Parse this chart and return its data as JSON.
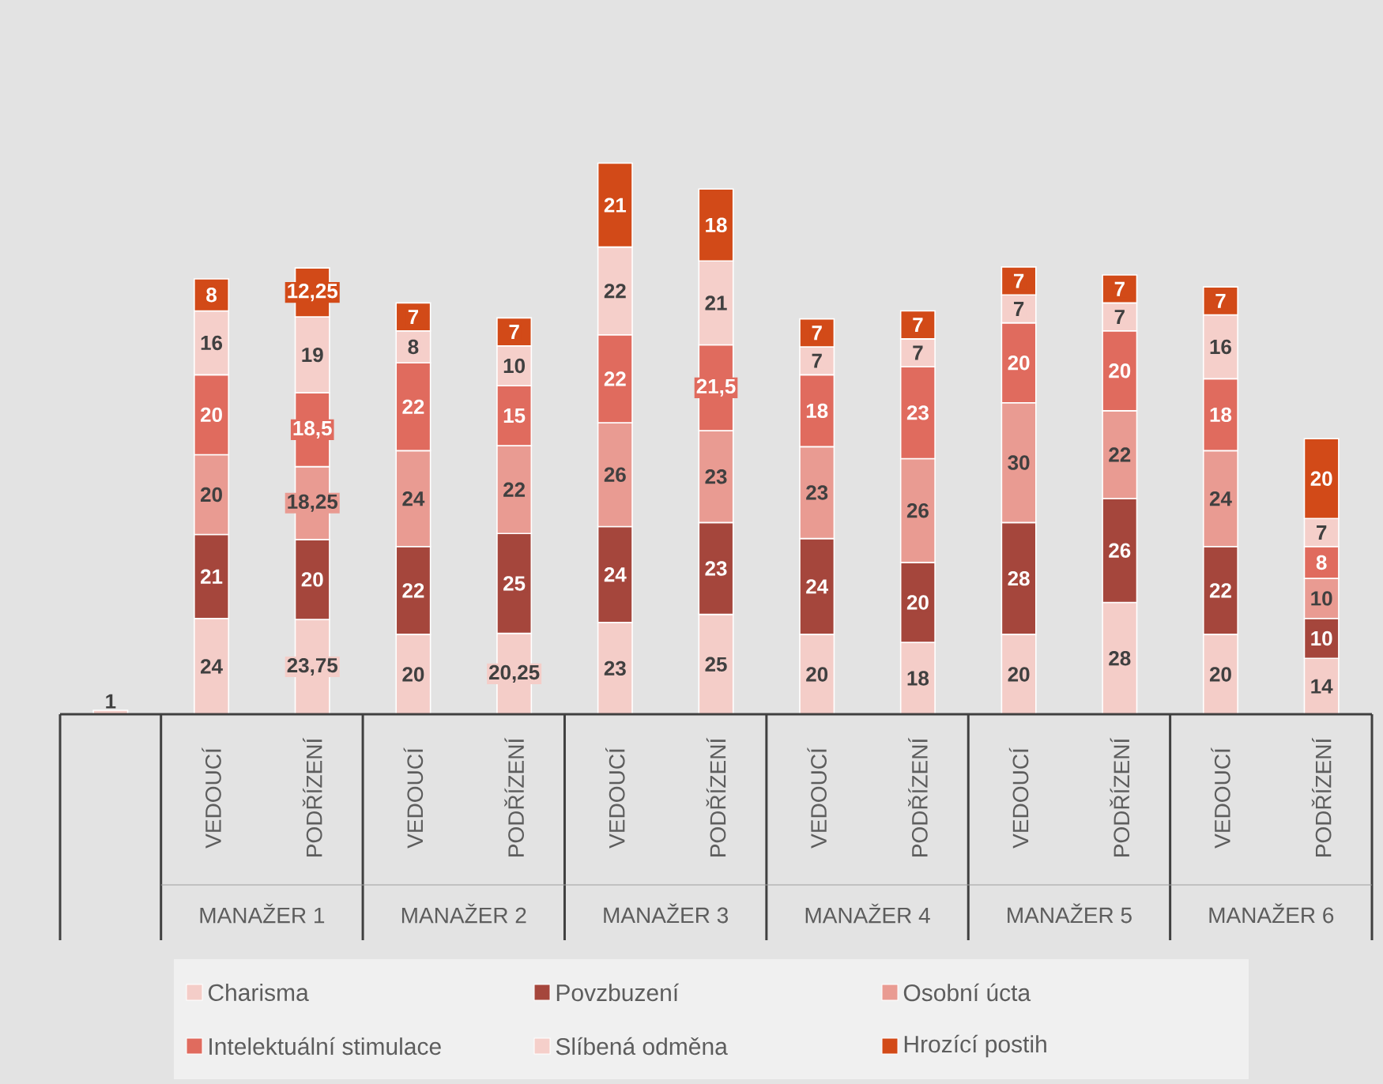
{
  "chart_data": {
    "type": "bar",
    "stacked": true,
    "legend": "bottom",
    "categories": [
      null,
      "VEDOUCÍ",
      "PODŘÍZENÍ",
      "VEDOUCÍ",
      "PODŘÍZENÍ",
      "VEDOUCÍ",
      "PODŘÍZENÍ",
      "VEDOUCÍ",
      "PODŘÍZENÍ",
      "VEDOUCÍ",
      "PODŘÍZENÍ",
      "VEDOUCÍ",
      "PODŘÍZENÍ"
    ],
    "annotations": [
      "MANAŽER 1",
      "MANAŽER 2",
      "MANAŽER 3",
      "MANAŽER 4",
      "MANAŽER 5",
      "MANAŽER 6"
    ],
    "series": [
      {
        "name": "Charisma",
        "color": "#f4cdc8",
        "values": [
          1,
          24,
          23.75,
          20,
          20.25,
          23,
          25,
          20,
          18,
          20,
          28,
          20,
          14
        ],
        "value_labels": [
          "1",
          "24",
          "23,75",
          "20",
          "20,25",
          "23",
          "25",
          "20",
          "18",
          "20",
          "28",
          "20",
          "14"
        ]
      },
      {
        "name": "Povzbuzení",
        "color": "#a5463c",
        "values": [
          null,
          21,
          20,
          22,
          25,
          24,
          23,
          24,
          20,
          28,
          26,
          22,
          10
        ],
        "value_labels": [
          null,
          "21",
          "20",
          "22",
          "25",
          "24",
          "23",
          "24",
          "20",
          "28",
          "26",
          "22",
          "10"
        ]
      },
      {
        "name": "Osobní úcta",
        "color": "#e99b92",
        "values": [
          null,
          20,
          18.25,
          24,
          22,
          26,
          23,
          23,
          26,
          30,
          22,
          24,
          10
        ],
        "value_labels": [
          null,
          "20",
          "18,25",
          "24",
          "22",
          "26",
          "23",
          "23",
          "26",
          "30",
          "22",
          "24",
          "10"
        ]
      },
      {
        "name": "Intelektuální stimulace",
        "color": "#e06b5e",
        "values": [
          null,
          20,
          18.5,
          22,
          15,
          22,
          21.5,
          18,
          23,
          20,
          20,
          18,
          8
        ],
        "value_labels": [
          null,
          "20",
          "18,5",
          "22",
          "15",
          "22",
          "21,5",
          "18",
          "23",
          "20",
          "20",
          "18",
          "8"
        ]
      },
      {
        "name": "Slíbená odměna",
        "color": "#f5cfca",
        "values": [
          null,
          16,
          19,
          8,
          10,
          22,
          21,
          7,
          7,
          7,
          7,
          16,
          7
        ],
        "value_labels": [
          null,
          "16",
          "19",
          "8",
          "10",
          "22",
          "21",
          "7",
          "7",
          "7",
          "7",
          "16",
          "7"
        ]
      },
      {
        "name": "Hrozící postih",
        "color": "#d24a18",
        "values": [
          null,
          8,
          12.25,
          7,
          7,
          21,
          18,
          7,
          7,
          7,
          7,
          7,
          20
        ],
        "value_labels": [
          null,
          "8",
          "12,25",
          "7",
          "7",
          "21",
          "18",
          "7",
          "7",
          "7",
          "7",
          "7",
          "20"
        ]
      }
    ]
  }
}
